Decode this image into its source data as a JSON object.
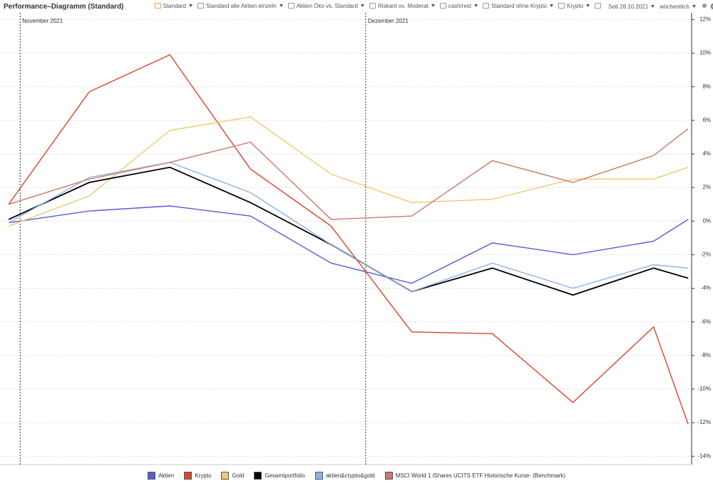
{
  "toolbar": {
    "title": "Performance–Diagramm (Standard)",
    "views": [
      "Standard",
      "Standard alle Aktien einzeln",
      "Aktien Öko vs. Standard",
      "Riskant vs. Moderat",
      "cash/rest",
      "Standard ohne Krypto",
      "Krypto"
    ],
    "period": "Seit 28.10.2021",
    "interval": "wöchentlich"
  },
  "chart_data": {
    "type": "line",
    "x": [
      0,
      7,
      14,
      21,
      28,
      35,
      42,
      49,
      56,
      59
    ],
    "xlim": [
      -0.75,
      59.3
    ],
    "ylim": [
      -14.5,
      12.4
    ],
    "yticks": [
      {
        "value": 12,
        "label": "12%"
      },
      {
        "value": 10,
        "label": "10%"
      },
      {
        "value": 8,
        "label": "8%"
      },
      {
        "value": 6,
        "label": "6%"
      },
      {
        "value": 4,
        "label": "4%"
      },
      {
        "value": 2,
        "label": "2%"
      },
      {
        "value": 0,
        "label": "0%"
      },
      {
        "value": -2,
        "label": "-2%"
      },
      {
        "value": -4,
        "label": "-4%"
      },
      {
        "value": -6,
        "label": "-6%"
      },
      {
        "value": -8,
        "label": "-8%"
      },
      {
        "value": -10,
        "label": "-10%"
      },
      {
        "value": -12,
        "label": "-12%"
      },
      {
        "value": -14,
        "label": "-14%"
      }
    ],
    "grid": true,
    "annotations": [
      {
        "x": 1,
        "label": "November 2021"
      },
      {
        "x": 31,
        "label": "Dezember 2021"
      }
    ],
    "series": [
      {
        "name": "Aktien",
        "color": "#5b5bd6",
        "values": [
          -0.1,
          0.6,
          0.9,
          0.3,
          -2.5,
          -3.7,
          -1.3,
          -2.0,
          -1.2,
          0.1
        ]
      },
      {
        "name": "Krypto",
        "color": "#d9442c",
        "values": [
          1.0,
          7.7,
          9.9,
          3.1,
          -0.3,
          -6.6,
          -6.7,
          -10.8,
          -6.3,
          -12.1
        ]
      },
      {
        "name": "Gold",
        "color": "#f0c873",
        "values": [
          -0.3,
          1.5,
          5.4,
          6.2,
          2.8,
          1.1,
          1.3,
          2.5,
          2.5,
          3.2
        ]
      },
      {
        "name": "Gesamtportfolio",
        "color": "#000000",
        "values": [
          0.1,
          2.3,
          3.2,
          1.1,
          -1.4,
          -4.2,
          -2.8,
          -4.4,
          -2.8,
          -3.4
        ]
      },
      {
        "name": "aktien&crypto&gold",
        "color": "#8fb2e4",
        "values": [
          -0.1,
          2.6,
          3.5,
          1.7,
          -1.4,
          -4.2,
          -2.5,
          -4.0,
          -2.6,
          -2.8
        ]
      },
      {
        "name": "MSCI World 1  iShares UCITS ETF Historische Kurse- (Benchmark)",
        "color": "#c9796b",
        "values": [
          1.0,
          2.5,
          3.5,
          4.7,
          0.1,
          0.3,
          3.6,
          2.3,
          3.9,
          5.5
        ]
      }
    ]
  }
}
